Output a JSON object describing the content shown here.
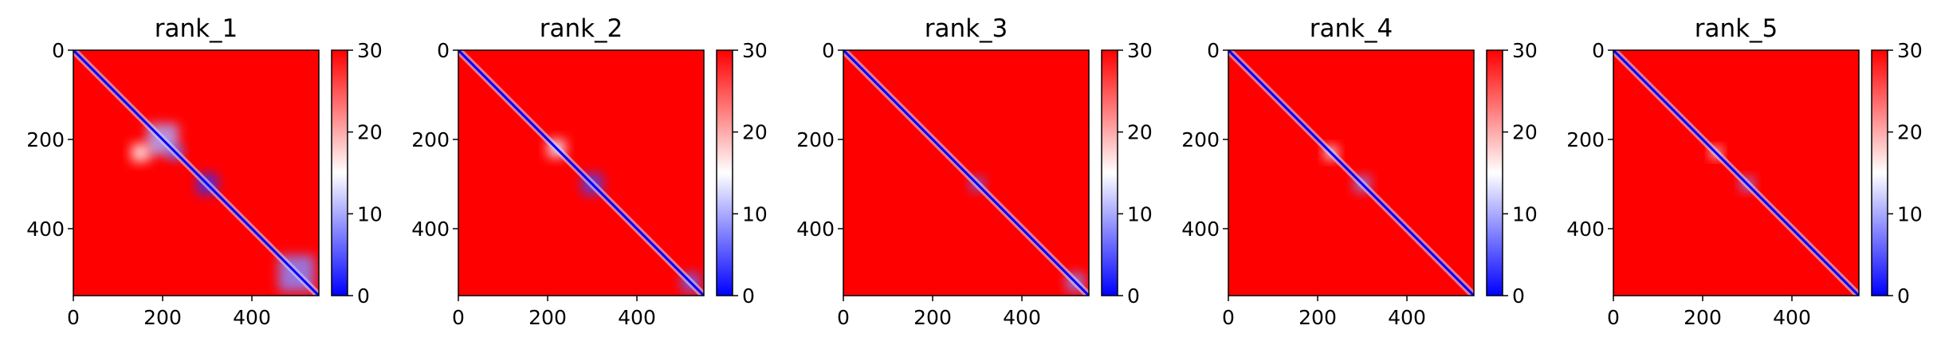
{
  "chart_data": [
    {
      "type": "heatmap",
      "title": "rank_1",
      "xlabel": "",
      "ylabel": "",
      "xlim": [
        0,
        550
      ],
      "ylim": [
        550,
        0
      ],
      "xticks": [
        0,
        200,
        400
      ],
      "yticks": [
        0,
        200,
        400
      ],
      "colorbar": {
        "min": 0,
        "max": 30,
        "ticks": [
          0,
          10,
          20,
          30
        ],
        "colormap": [
          "#0000ff",
          "#ffffff",
          "#ff0000"
        ]
      },
      "background_value": 30,
      "diagonal_value": 0,
      "low_regions": [
        {
          "x": 200,
          "y": 200,
          "w": 70,
          "value": 10
        },
        {
          "x": 300,
          "y": 300,
          "w": 45,
          "value": 3
        },
        {
          "x": 230,
          "y": 230,
          "w": 30,
          "value": 6
        },
        {
          "x": 500,
          "y": 500,
          "w": 80,
          "value": 8
        },
        {
          "x": 150,
          "y": 230,
          "w": 40,
          "value": 16
        }
      ]
    },
    {
      "type": "heatmap",
      "title": "rank_2",
      "xlabel": "",
      "ylabel": "",
      "xlim": [
        0,
        550
      ],
      "ylim": [
        550,
        0
      ],
      "xticks": [
        0,
        200,
        400
      ],
      "yticks": [
        0,
        200,
        400
      ],
      "colorbar": {
        "min": 0,
        "max": 30,
        "ticks": [
          0,
          10,
          20,
          30
        ],
        "colormap": [
          "#0000ff",
          "#ffffff",
          "#ff0000"
        ]
      },
      "background_value": 30,
      "diagonal_value": 0,
      "low_regions": [
        {
          "x": 300,
          "y": 300,
          "w": 45,
          "value": 4
        },
        {
          "x": 220,
          "y": 220,
          "w": 40,
          "value": 14
        },
        {
          "x": 520,
          "y": 520,
          "w": 40,
          "value": 6
        }
      ]
    },
    {
      "type": "heatmap",
      "title": "rank_3",
      "xlabel": "",
      "ylabel": "",
      "xlim": [
        0,
        550
      ],
      "ylim": [
        550,
        0
      ],
      "xticks": [
        0,
        200,
        400
      ],
      "yticks": [
        0,
        200,
        400
      ],
      "colorbar": {
        "min": 0,
        "max": 30,
        "ticks": [
          0,
          10,
          20,
          30
        ],
        "colormap": [
          "#0000ff",
          "#ffffff",
          "#ff0000"
        ]
      },
      "background_value": 30,
      "diagonal_value": 0,
      "low_regions": [
        {
          "x": 300,
          "y": 300,
          "w": 30,
          "value": 6
        },
        {
          "x": 520,
          "y": 520,
          "w": 40,
          "value": 8
        }
      ]
    },
    {
      "type": "heatmap",
      "title": "rank_4",
      "xlabel": "",
      "ylabel": "",
      "xlim": [
        0,
        550
      ],
      "ylim": [
        550,
        0
      ],
      "xticks": [
        0,
        200,
        400
      ],
      "yticks": [
        0,
        200,
        400
      ],
      "colorbar": {
        "min": 0,
        "max": 30,
        "ticks": [
          0,
          10,
          20,
          30
        ],
        "colormap": [
          "#0000ff",
          "#ffffff",
          "#ff0000"
        ]
      },
      "background_value": 30,
      "diagonal_value": 0,
      "low_regions": [
        {
          "x": 300,
          "y": 300,
          "w": 35,
          "value": 8
        },
        {
          "x": 230,
          "y": 230,
          "w": 30,
          "value": 14
        }
      ]
    },
    {
      "type": "heatmap",
      "title": "rank_5",
      "xlabel": "",
      "ylabel": "",
      "xlim": [
        0,
        550
      ],
      "ylim": [
        550,
        0
      ],
      "xticks": [
        0,
        200,
        400
      ],
      "yticks": [
        0,
        200,
        400
      ],
      "colorbar": {
        "min": 0,
        "max": 30,
        "ticks": [
          0,
          10,
          20,
          30
        ],
        "colormap": [
          "#0000ff",
          "#ffffff",
          "#ff0000"
        ]
      },
      "background_value": 30,
      "diagonal_value": 0,
      "low_regions": [
        {
          "x": 300,
          "y": 300,
          "w": 30,
          "value": 8
        },
        {
          "x": 230,
          "y": 230,
          "w": 25,
          "value": 14
        }
      ]
    }
  ]
}
